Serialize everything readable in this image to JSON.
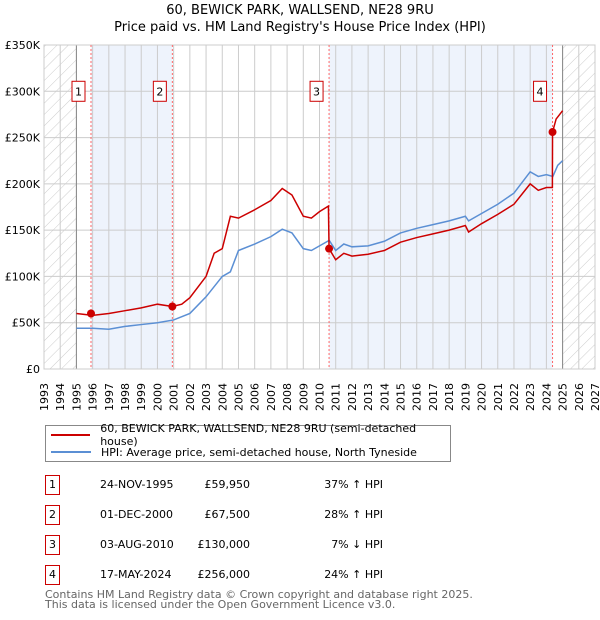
{
  "chart_data": {
    "type": "line",
    "title": "60, BEWICK PARK, WALLSEND, NE28 9RU",
    "subtitle": "Price paid vs. HM Land Registry's House Price Index (HPI)",
    "xlim": [
      1993,
      2027
    ],
    "ylim": [
      0,
      350000
    ],
    "x_ticks": [
      "1993",
      "1994",
      "1995",
      "1996",
      "1997",
      "1998",
      "1999",
      "2000",
      "2001",
      "2002",
      "2003",
      "2004",
      "2005",
      "2006",
      "2007",
      "2008",
      "2009",
      "2010",
      "2011",
      "2012",
      "2013",
      "2014",
      "2015",
      "2016",
      "2017",
      "2018",
      "2019",
      "2020",
      "2021",
      "2022",
      "2023",
      "2024",
      "2025",
      "2026",
      "2027"
    ],
    "y_ticks": [
      {
        "v": 0,
        "label": "£0"
      },
      {
        "v": 50000,
        "label": "£50K"
      },
      {
        "v": 100000,
        "label": "£100K"
      },
      {
        "v": 150000,
        "label": "£150K"
      },
      {
        "v": 200000,
        "label": "£200K"
      },
      {
        "v": 250000,
        "label": "£250K"
      },
      {
        "v": 300000,
        "label": "£300K"
      },
      {
        "v": 350000,
        "label": "£350K"
      }
    ],
    "hatched_ranges": [
      [
        1993,
        1995
      ],
      [
        2025,
        2027
      ]
    ],
    "shaded_ranges": [
      [
        1995.9,
        2000.92
      ],
      [
        2010.59,
        2024.38
      ]
    ],
    "series": [
      {
        "name": "60, BEWICK PARK, WALLSEND, NE28 9RU (semi-detached house)",
        "color": "#cc0000",
        "x": [
          1995,
          1996,
          1997,
          1998,
          1999,
          2000,
          2000.92,
          2001.5,
          2002,
          2003,
          2003.5,
          2004,
          2004.5,
          2005,
          2006,
          2007,
          2007.7,
          2008.3,
          2009,
          2009.5,
          2010,
          2010.55,
          2010.59,
          2011,
          2011.5,
          2012,
          2013,
          2014,
          2015,
          2016,
          2017,
          2018,
          2019,
          2019.2,
          2020,
          2021,
          2022,
          2023,
          2023.5,
          2024,
          2024.37,
          2024.38,
          2024.6,
          2025
        ],
        "y": [
          60000,
          58000,
          60000,
          63000,
          66000,
          70000,
          67500,
          70000,
          77000,
          100000,
          125000,
          130000,
          165000,
          163000,
          172000,
          182000,
          195000,
          188000,
          165000,
          163000,
          170000,
          176000,
          130000,
          118000,
          125000,
          122000,
          124000,
          128000,
          137000,
          142000,
          146000,
          150000,
          155000,
          148000,
          157000,
          167000,
          178000,
          200000,
          193000,
          196000,
          196000,
          256000,
          270000,
          279000
        ]
      },
      {
        "name": "HPI: Average price, semi-detached house, North Tyneside",
        "color": "#5b8fd4",
        "x": [
          1995,
          1996,
          1997,
          1998,
          1999,
          2000,
          2001,
          2002,
          2003,
          2004,
          2004.5,
          2005,
          2006,
          2007,
          2007.7,
          2008.3,
          2009,
          2009.5,
          2010,
          2010.6,
          2011,
          2011.5,
          2012,
          2013,
          2014,
          2015,
          2016,
          2017,
          2018,
          2019,
          2019.2,
          2020,
          2021,
          2022,
          2023,
          2023.5,
          2024,
          2024.4,
          2024.7,
          2025
        ],
        "y": [
          44000,
          44000,
          43000,
          46000,
          48000,
          50000,
          53000,
          60000,
          78000,
          100000,
          105000,
          128000,
          135000,
          143000,
          151000,
          147000,
          130000,
          128000,
          133000,
          139000,
          128000,
          135000,
          132000,
          133000,
          138000,
          147000,
          152000,
          156000,
          160000,
          165000,
          160000,
          168000,
          178000,
          190000,
          213000,
          208000,
          210000,
          208000,
          220000,
          225000
        ]
      }
    ],
    "sales": [
      {
        "n": "1",
        "x": 1995.9,
        "y": 59950,
        "date": "24-NOV-1995",
        "price": "£59,950",
        "hpi": "37% ↑ HPI"
      },
      {
        "n": "2",
        "x": 2000.92,
        "y": 67500,
        "date": "01-DEC-2000",
        "price": "£67,500",
        "hpi": "28% ↑ HPI"
      },
      {
        "n": "3",
        "x": 2010.59,
        "y": 130000,
        "date": "03-AUG-2010",
        "price": "£130,000",
        "hpi": "7% ↓ HPI"
      },
      {
        "n": "4",
        "x": 2024.38,
        "y": 256000,
        "date": "17-MAY-2024",
        "price": "£256,000",
        "hpi": "24% ↑ HPI"
      }
    ]
  },
  "footer": {
    "line1": "Contains HM Land Registry data © Crown copyright and database right 2025.",
    "line2": "This data is licensed under the Open Government Licence v3.0."
  }
}
